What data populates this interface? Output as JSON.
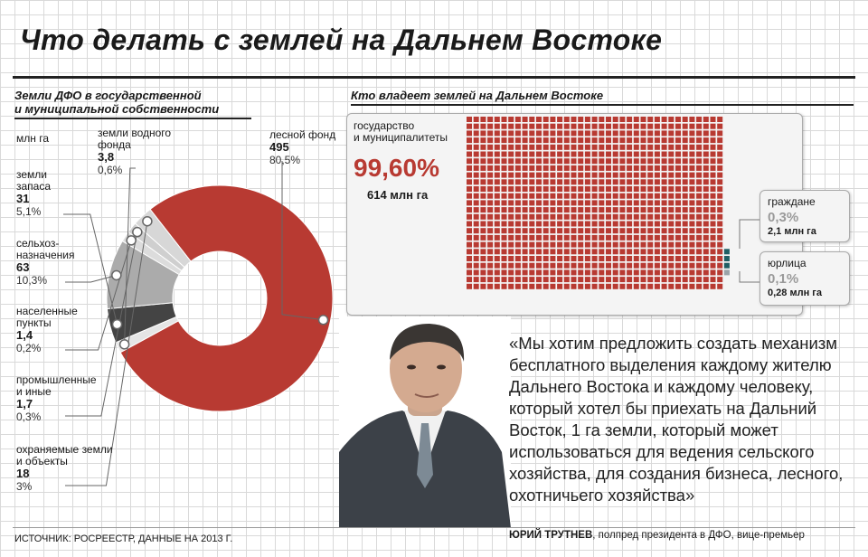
{
  "title": "Что делать с землей на Дальнем Востоке",
  "left_section": {
    "title_line1": "Земли ДФО в государственной",
    "title_line2": "и муниципальной собственности",
    "unit": "млн га"
  },
  "right_section": {
    "title": "Кто владеет землей на Дальнем Востоке"
  },
  "chart_data": [
    {
      "type": "pie",
      "title": "Земли ДФО в государственной и муниципальной собственности",
      "unit": "млн га",
      "slices": [
        {
          "name_lines": [
            "лесной фонд"
          ],
          "value": "495",
          "percent": "80,5%",
          "value_num": 495,
          "percent_num": 80.5,
          "color": "#b83a32"
        },
        {
          "name_lines": [
            "земли водного",
            "фонда"
          ],
          "value": "3,8",
          "percent": "0,6%",
          "value_num": 3.8,
          "percent_num": 0.6,
          "color": "#e5e5e5"
        },
        {
          "name_lines": [
            "земли",
            "запаса"
          ],
          "value": "31",
          "percent": "5,1%",
          "value_num": 31,
          "percent_num": 5.1,
          "color": "#444444"
        },
        {
          "name_lines": [
            "сельхоз-",
            "назначения"
          ],
          "value": "63",
          "percent": "10,3%",
          "value_num": 63,
          "percent_num": 10.3,
          "color": "#ababab"
        },
        {
          "name_lines": [
            "населенные",
            "пункты"
          ],
          "value": "1,4",
          "percent": "0,2%",
          "value_num": 1.4,
          "percent_num": 0.2,
          "color": "#dcdcdc"
        },
        {
          "name_lines": [
            "промышленные",
            "и иные"
          ],
          "value": "1,7",
          "percent": "0,3%",
          "value_num": 1.7,
          "percent_num": 0.3,
          "color": "#cfcfcf"
        },
        {
          "name_lines": [
            "охраняемые земли",
            "и объекты"
          ],
          "value": "18",
          "percent": "3%",
          "value_num": 18,
          "percent_num": 3.0,
          "color": "#d7d7d7"
        }
      ]
    },
    {
      "type": "waffle",
      "title": "Кто владеет землей на Дальнем Востоке",
      "categories": [
        {
          "name_lines": [
            "государство",
            "и муниципалитеты"
          ],
          "percent": "99,60%",
          "area": "614 млн га",
          "percent_num": 99.6,
          "color": "#b83a32"
        },
        {
          "name_lines": [
            "граждане"
          ],
          "percent": "0,3%",
          "area": "2,1 млн га",
          "percent_num": 0.3,
          "color": "#1f5e64"
        },
        {
          "name_lines": [
            "юрлица"
          ],
          "percent": "0,1%",
          "area": "0,28 млн га",
          "percent_num": 0.1,
          "color": "#9aa3a8"
        }
      ]
    }
  ],
  "quote": {
    "text": "«Мы хотим предложить создать механизм бесплатного выделения каждому жителю Дальнего Востока и каждому человеку, который хотел бы приехать на Дальний Восток, 1 га земли, который может использоваться для ведения сельского хозяйства, для создания бизнеса, лесного, охотничьего хозяйства»",
    "author": "ЮРИЙ ТРУТНЕВ",
    "position": ", полпред президента в ДФО, вице-премьер"
  },
  "source": "ИСТОЧНИК: РОСРЕЕСТР, ДАННЫЕ НА 2013 Г."
}
